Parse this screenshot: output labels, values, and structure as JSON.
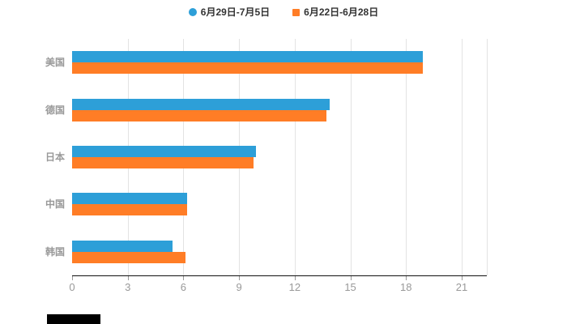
{
  "legend": {
    "items": [
      {
        "label": "6月29日-7月5日",
        "color": "#2d9fd8",
        "marker": "circle"
      },
      {
        "label": "6月22日-6月28日",
        "color": "#ff7d26",
        "marker": "square"
      }
    ]
  },
  "chart_data": {
    "type": "bar",
    "orientation": "horizontal",
    "title": "",
    "categories": [
      "美国",
      "德国",
      "日本",
      "中国",
      "韩国"
    ],
    "series": [
      {
        "name": "6月29日-7月5日",
        "color": "#2d9fd8",
        "values": [
          18.9,
          13.9,
          9.9,
          6.2,
          5.4
        ]
      },
      {
        "name": "6月22日-6月28日",
        "color": "#ff7d26",
        "values": [
          18.9,
          13.7,
          9.8,
          6.2,
          6.1
        ]
      }
    ],
    "xlabel": "",
    "ylabel": "",
    "xlim": [
      0,
      21
    ],
    "x_ticks": [
      0,
      3,
      6,
      9,
      12,
      15,
      18,
      21
    ],
    "grid": true,
    "legend_position": "top",
    "gridline_color": "#e3e3e3",
    "axis_color": "#111111",
    "label_color": "#999999"
  }
}
